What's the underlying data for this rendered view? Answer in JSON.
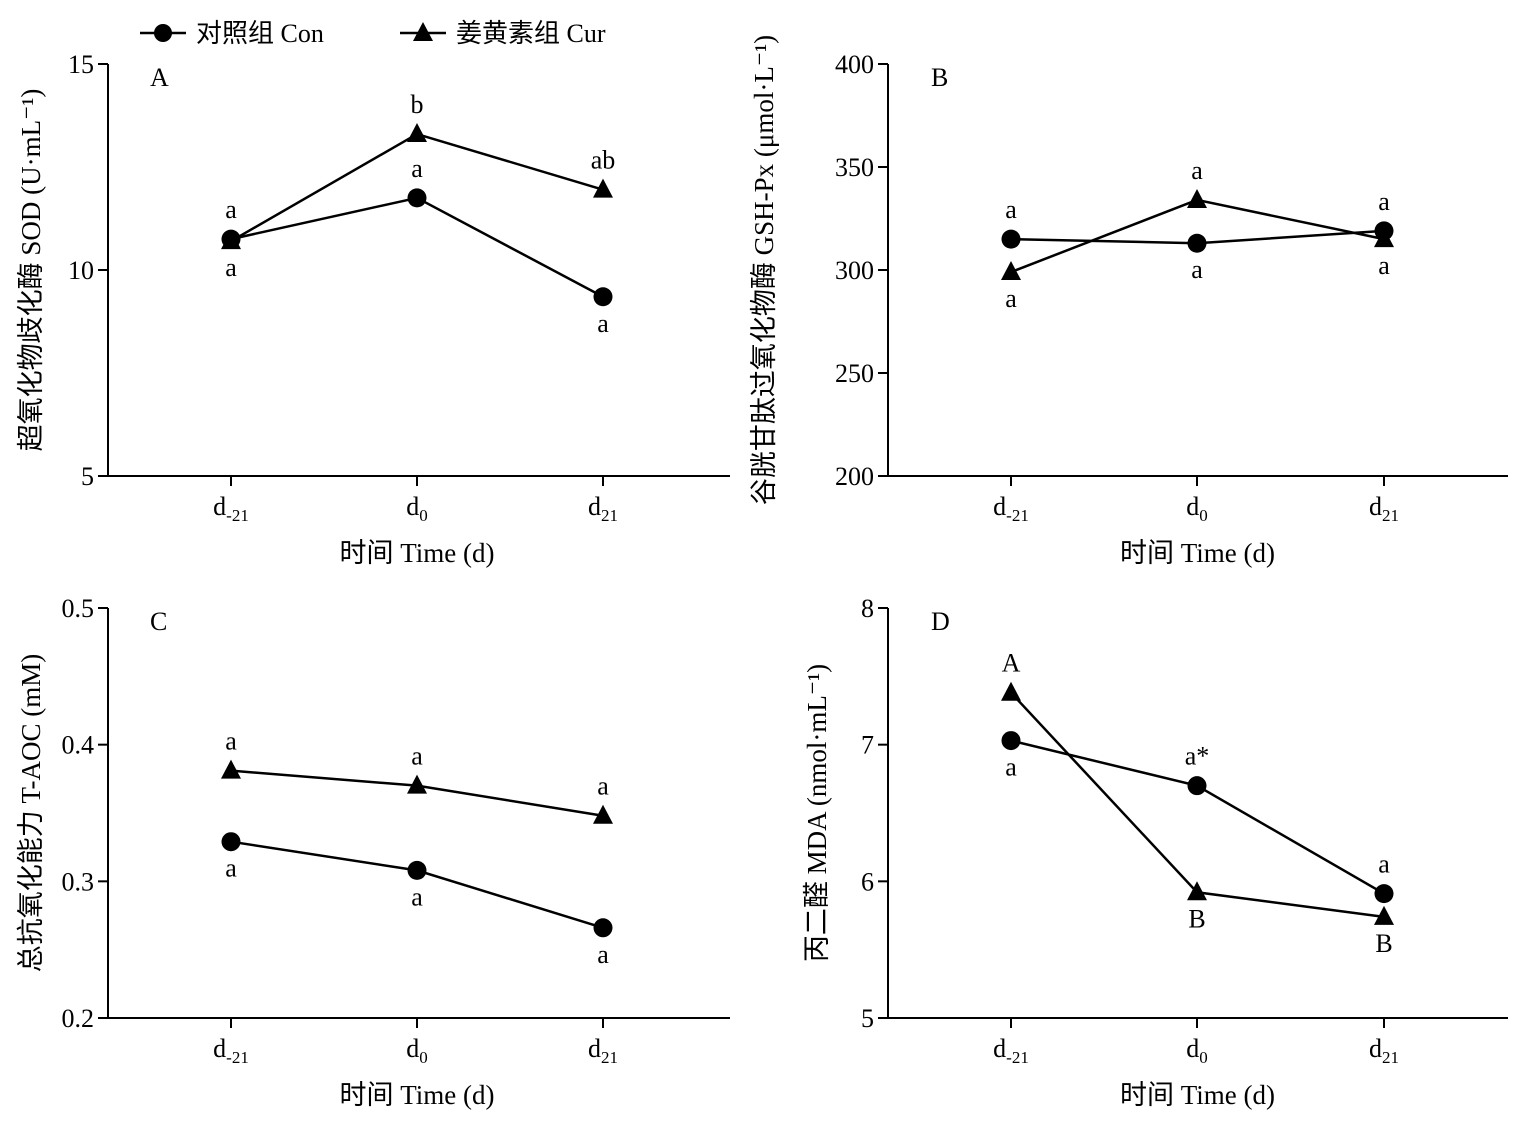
{
  "legend": {
    "con_label": "对照组 Con",
    "cur_label": "姜黄素组 Cur"
  },
  "colors": {
    "line": "#000000",
    "background": "#ffffff"
  },
  "chart_data": [
    {
      "type": "line",
      "panel_label": "A",
      "title": "",
      "xlabel": "时间 Time (d)",
      "ylabel": "超氧化物歧化酶 SOD (U·mL⁻¹)",
      "ylim": [
        5,
        15
      ],
      "yticks": [
        "5",
        "10",
        "15"
      ],
      "categories": [
        "d-21",
        "d0",
        "d21"
      ],
      "series": [
        {
          "name": "对照组 Con",
          "marker": "circle",
          "values": [
            10.75,
            11.75,
            9.35
          ],
          "labels": [
            "a",
            "a",
            "a"
          ]
        },
        {
          "name": "姜黄素组 Cur",
          "marker": "triangle",
          "values": [
            10.7,
            13.3,
            11.95
          ],
          "labels": [
            "a",
            "b",
            "ab"
          ]
        }
      ]
    },
    {
      "type": "line",
      "panel_label": "B",
      "title": "",
      "xlabel": "时间 Time (d)",
      "ylabel": "谷胱甘肽过氧化物酶 GSH-Px (μmol·L⁻¹)",
      "ylim": [
        200,
        400
      ],
      "yticks": [
        "200",
        "250",
        "300",
        "350",
        "400"
      ],
      "categories": [
        "d-21",
        "d0",
        "d21"
      ],
      "series": [
        {
          "name": "对照组 Con",
          "marker": "circle",
          "values": [
            315,
            313,
            319
          ],
          "labels": [
            "a",
            "a",
            "a"
          ]
        },
        {
          "name": "姜黄素组 Cur",
          "marker": "triangle",
          "values": [
            299,
            334,
            315
          ],
          "labels": [
            "a",
            "a",
            "a"
          ]
        }
      ]
    },
    {
      "type": "line",
      "panel_label": "C",
      "title": "",
      "xlabel": "时间 Time (d)",
      "ylabel": "总抗氧化能力 T-AOC (mM)",
      "ylim": [
        0.2,
        0.5
      ],
      "yticks": [
        "0.2",
        "0.3",
        "0.4",
        "0.5"
      ],
      "categories": [
        "d-21",
        "d0",
        "d21"
      ],
      "series": [
        {
          "name": "对照组 Con",
          "marker": "circle",
          "values": [
            0.329,
            0.308,
            0.266
          ],
          "labels": [
            "a",
            "a",
            "a"
          ]
        },
        {
          "name": "姜黄素组 Cur",
          "marker": "triangle",
          "values": [
            0.381,
            0.37,
            0.348
          ],
          "labels": [
            "a",
            "a",
            "a"
          ]
        }
      ]
    },
    {
      "type": "line",
      "panel_label": "D",
      "title": "",
      "xlabel": "时间 Time (d)",
      "ylabel": "丙二醛 MDA (nmol·mL⁻¹)",
      "ylim": [
        5,
        8
      ],
      "yticks": [
        "5",
        "6",
        "7",
        "8"
      ],
      "categories": [
        "d-21",
        "d0",
        "d21"
      ],
      "series": [
        {
          "name": "对照组 Con",
          "marker": "circle",
          "values": [
            7.03,
            6.7,
            5.91
          ],
          "labels": [
            "a",
            "a*",
            "a"
          ]
        },
        {
          "name": "姜黄素组 Cur",
          "marker": "triangle",
          "values": [
            7.38,
            5.92,
            5.74
          ],
          "labels": [
            "A",
            "B",
            "B"
          ]
        }
      ]
    }
  ]
}
